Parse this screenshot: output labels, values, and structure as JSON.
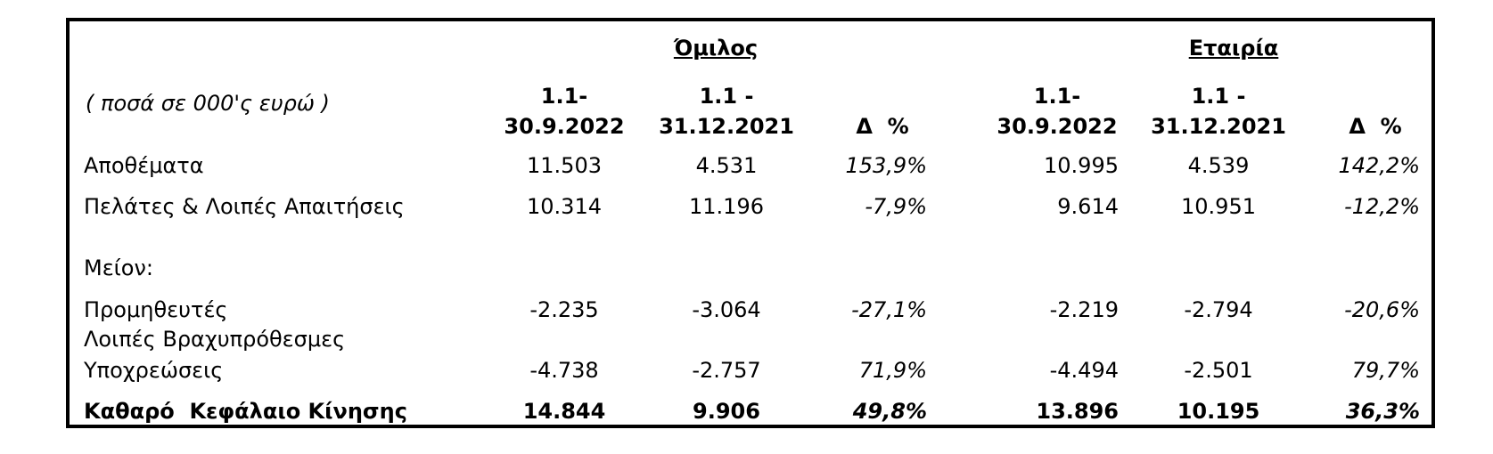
{
  "groups": {
    "group": "Όμιλος",
    "company": "Εταιρία"
  },
  "units_note": "( ποσά σε 000'ς ευρώ )",
  "columns": {
    "period1_line1": "1.1-",
    "period1_line2": "30.9.2022",
    "period2_line1": "1.1 -",
    "period2_line2": "31.12.2021",
    "delta": "Δ  %"
  },
  "rows": [
    {
      "label": "Αποθέματα",
      "g1": "11.503",
      "g2": "4.531",
      "gd": "153,9%",
      "c1": "10.995",
      "c2": "4.539",
      "cd": "142,2%"
    },
    {
      "label": "Πελάτες & Λοιπές Απαιτήσεις",
      "g1": "10.314",
      "g2": "11.196",
      "gd": "-7,9%",
      "c1": "9.614",
      "c2": "10.951",
      "cd": "-12,2%"
    },
    {
      "label": "Μείον:"
    },
    {
      "label": "Προμηθευτές",
      "g1": "-2.235",
      "g2": "-3.064",
      "gd": "-27,1%",
      "c1": "-2.219",
      "c2": "-2.794",
      "cd": "-20,6%"
    },
    {
      "label_line1": "Λοιπές Βραχυπρόθεσμες",
      "label_line2": "Υποχρεώσεις",
      "g1": "-4.738",
      "g2": "-2.757",
      "gd": "71,9%",
      "c1": "-4.494",
      "c2": "-2.501",
      "cd": "79,7%"
    },
    {
      "label": "Καθαρό  Κεφάλαιο Κίνησης",
      "g1": "14.844",
      "g2": "9.906",
      "gd": "49,8%",
      "c1": "13.896",
      "c2": "10.195",
      "cd": "36,3%"
    }
  ]
}
